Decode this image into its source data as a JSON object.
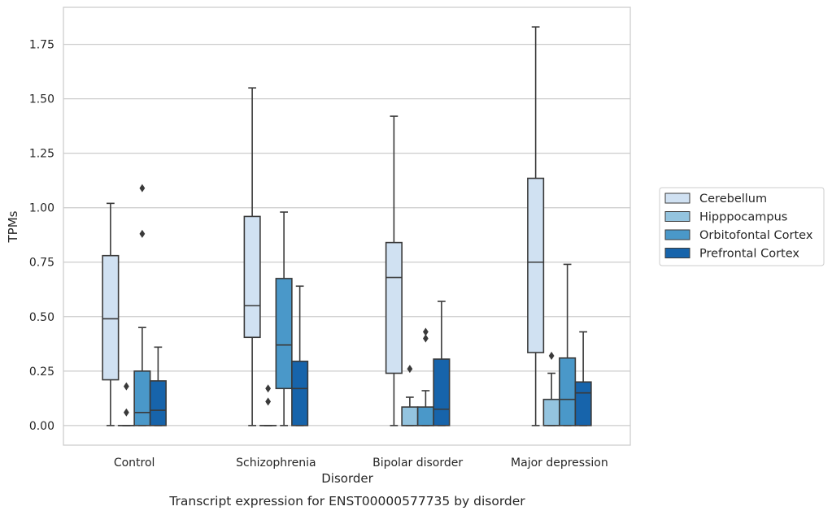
{
  "chart_data": {
    "type": "box",
    "title": "",
    "caption": "Transcript expression for ENST00000577735 by disorder",
    "xlabel": "Disorder",
    "ylabel": "TPMs",
    "ylim": [
      -0.09,
      1.92
    ],
    "yticks": [
      0.0,
      0.25,
      0.5,
      0.75,
      1.0,
      1.25,
      1.5,
      1.75
    ],
    "ytick_labels": [
      "0.00",
      "0.25",
      "0.50",
      "0.75",
      "1.00",
      "1.25",
      "1.50",
      "1.75"
    ],
    "grid": true,
    "legend_position": "right",
    "categories": [
      "Control",
      "Schizophrenia",
      "Bipolar disorder",
      "Major depression"
    ],
    "series": [
      {
        "name": "Cerebellum",
        "color": "#d0e1f2",
        "boxes": [
          {
            "whisker_low": 0.0,
            "q1": 0.21,
            "median": 0.49,
            "q3": 0.78,
            "whisker_high": 1.02,
            "outliers": []
          },
          {
            "whisker_low": 0.0,
            "q1": 0.405,
            "median": 0.55,
            "q3": 0.96,
            "whisker_high": 1.55,
            "outliers": []
          },
          {
            "whisker_low": 0.0,
            "q1": 0.24,
            "median": 0.68,
            "q3": 0.84,
            "whisker_high": 1.42,
            "outliers": []
          },
          {
            "whisker_low": 0.0,
            "q1": 0.335,
            "median": 0.75,
            "q3": 1.135,
            "whisker_high": 1.83,
            "outliers": []
          }
        ]
      },
      {
        "name": "Hipppocampus",
        "color": "#94c4df",
        "boxes": [
          {
            "whisker_low": 0.0,
            "q1": 0.0,
            "median": 0.0,
            "q3": 0.0,
            "whisker_high": 0.0,
            "outliers": [
              0.06,
              0.18
            ]
          },
          {
            "whisker_low": 0.0,
            "q1": 0.0,
            "median": 0.0,
            "q3": 0.0,
            "whisker_high": 0.0,
            "outliers": [
              0.11,
              0.17
            ]
          },
          {
            "whisker_low": 0.0,
            "q1": 0.0,
            "median": 0.0,
            "q3": 0.085,
            "whisker_high": 0.13,
            "outliers": [
              0.26
            ]
          },
          {
            "whisker_low": 0.0,
            "q1": 0.0,
            "median": 0.0,
            "q3": 0.12,
            "whisker_high": 0.24,
            "outliers": [
              0.32
            ]
          }
        ]
      },
      {
        "name": "Orbitofontal Cortex",
        "color": "#4a98c9",
        "boxes": [
          {
            "whisker_low": 0.0,
            "q1": 0.0,
            "median": 0.06,
            "q3": 0.25,
            "whisker_high": 0.45,
            "outliers": [
              0.88,
              1.09
            ]
          },
          {
            "whisker_low": 0.0,
            "q1": 0.17,
            "median": 0.37,
            "q3": 0.675,
            "whisker_high": 0.98,
            "outliers": []
          },
          {
            "whisker_low": 0.0,
            "q1": 0.0,
            "median": 0.0,
            "q3": 0.085,
            "whisker_high": 0.16,
            "outliers": [
              0.4,
              0.43
            ]
          },
          {
            "whisker_low": 0.0,
            "q1": 0.0,
            "median": 0.12,
            "q3": 0.31,
            "whisker_high": 0.74,
            "outliers": []
          }
        ]
      },
      {
        "name": "Prefrontal Cortex",
        "color": "#1764ab",
        "boxes": [
          {
            "whisker_low": 0.0,
            "q1": 0.0,
            "median": 0.07,
            "q3": 0.205,
            "whisker_high": 0.36,
            "outliers": []
          },
          {
            "whisker_low": 0.0,
            "q1": 0.0,
            "median": 0.17,
            "q3": 0.295,
            "whisker_high": 0.64,
            "outliers": []
          },
          {
            "whisker_low": 0.0,
            "q1": 0.0,
            "median": 0.075,
            "q3": 0.305,
            "whisker_high": 0.57,
            "outliers": []
          },
          {
            "whisker_low": 0.0,
            "q1": 0.0,
            "median": 0.15,
            "q3": 0.2,
            "whisker_high": 0.43,
            "outliers": []
          }
        ]
      }
    ]
  }
}
